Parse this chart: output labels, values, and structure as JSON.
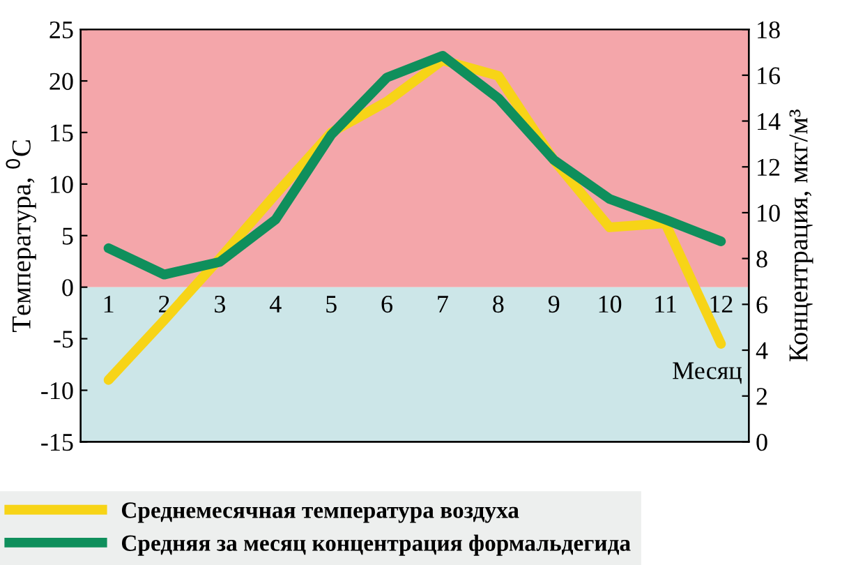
{
  "chart_data": {
    "type": "line",
    "categories": [
      "1",
      "2",
      "3",
      "4",
      "5",
      "6",
      "7",
      "8",
      "9",
      "10",
      "11",
      "12"
    ],
    "series": [
      {
        "name": "Среднемесячная температура воздуха",
        "color": "#f7d417",
        "values": [
          -9,
          -3.2,
          2.8,
          9,
          15,
          18,
          22,
          20.5,
          12.3,
          5.8,
          6.2,
          -5.5
        ]
      },
      {
        "name": "Средняя за месяц концентрация формальдегида",
        "color": "#0f8f5c",
        "axis": "y2",
        "values": [
          8.45,
          7.3,
          7.85,
          9.7,
          13.4,
          15.9,
          16.85,
          15.0,
          12.3,
          10.6,
          9.7,
          8.75
        ]
      }
    ],
    "xlabel": "Месяц",
    "ylabel": "Температура, $^{0}$С",
    "y2label": "Концентрация, мкг/м³",
    "ylim": [
      -15,
      25
    ],
    "yticks": [
      -15,
      -10,
      -5,
      0,
      5,
      10,
      15,
      20,
      25
    ],
    "y2lim": [
      0,
      18
    ],
    "y2ticks": [
      0,
      2,
      4,
      6,
      8,
      10,
      12,
      14,
      16,
      18
    ],
    "bands": [
      {
        "axis": "y",
        "from": 0,
        "to": 25,
        "color": "#f4a6aa"
      },
      {
        "axis": "y",
        "from": -15,
        "to": 0,
        "color": "#cce6e8"
      }
    ],
    "legend": "bottom",
    "grid": false,
    "marker": "none",
    "line_style": "solid"
  }
}
